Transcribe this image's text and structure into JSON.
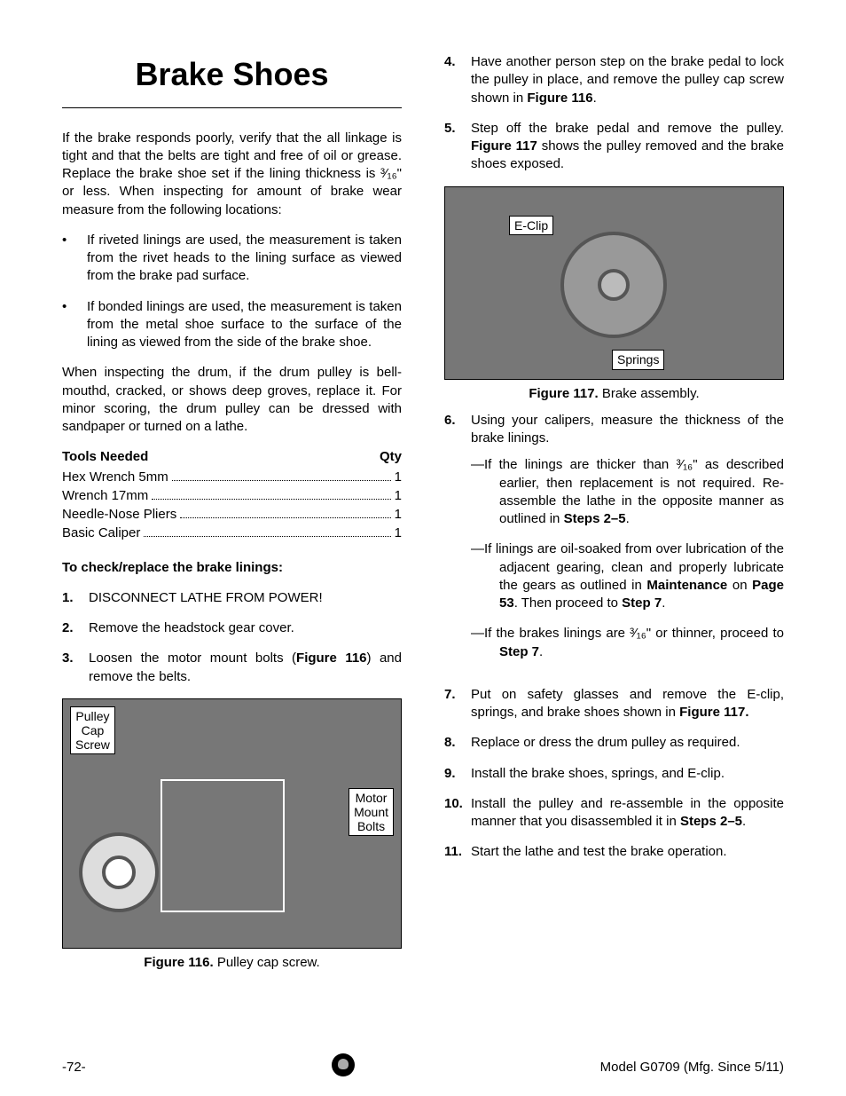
{
  "page": {
    "number": "-72-",
    "model": "Model G0709 (Mfg. Since 5/11)"
  },
  "title": "Brake Shoes",
  "intro": "If the brake responds poorly, verify that the all linkage is tight and that the belts are tight and free of oil or grease. Replace the brake shoe set if the lining thickness is ³⁄₁₆\" or less. When inspecting for amount of brake wear measure from the following locations:",
  "bullets": [
    "If riveted linings are used, the measurement is taken from the rivet heads to the lining surface as viewed from the brake pad surface.",
    "If bonded linings are used, the measurement is taken from the metal shoe surface to the surface of the lining as viewed from the side of the brake shoe."
  ],
  "drum_note": "When inspecting the drum, if the drum pulley is bell-mouthd, cracked, or shows deep groves, replace it. For minor scoring, the drum pulley can be dressed with sandpaper or turned on a lathe.",
  "tools": {
    "header_label": "Tools Needed",
    "qty_label": "Qty",
    "items": [
      {
        "name": "Hex Wrench 5mm",
        "qty": "1"
      },
      {
        "name": "Wrench 17mm",
        "qty": "1"
      },
      {
        "name": "Needle-Nose Pliers",
        "qty": "1"
      },
      {
        "name": "Basic Caliper",
        "qty": "1"
      }
    ]
  },
  "procedure_heading": "To check/replace the brake linings:",
  "steps_left": [
    {
      "n": "1.",
      "text": "DISCONNECT LATHE FROM POWER!"
    },
    {
      "n": "2.",
      "text": "Remove the headstock gear cover."
    },
    {
      "n": "3.",
      "text": "Loosen the motor mount bolts (<b>Figure 116</b>) and remove the belts."
    }
  ],
  "figure116": {
    "caption_bold": "Figure 116.",
    "caption_rest": " Pulley cap screw.",
    "label_a": "Pulley\nCap\nScrew",
    "label_b": "Motor\nMount\nBolts"
  },
  "steps_right_a": [
    {
      "n": "4.",
      "text": "Have another person step on the brake pedal to lock the pulley in place, and remove the pulley cap screw shown in <b>Figure 116</b>."
    },
    {
      "n": "5.",
      "text": "Step off the brake pedal and remove the pulley. <b>Figure 117</b> shows the pulley removed and the brake shoes exposed."
    }
  ],
  "figure117": {
    "caption_bold": "Figure 117.",
    "caption_rest": " Brake assembly.",
    "label_a": "E-Clip",
    "label_b": "Springs"
  },
  "step6": {
    "n": "6.",
    "text": "Using your calipers, measure the thickness of the brake linings.",
    "dashes": [
      "—If the linings are thicker than ³⁄₁₆\" as described earlier, then replacement is not required. Re-assemble the lathe in the opposite manner as outlined in <b>Steps 2–5</b>.",
      "—If linings are oil-soaked from over lubrication of the adjacent gearing, clean and properly lubricate the gears as outlined in <b>Maintenance</b> on <b>Page 53</b>. Then proceed to <b>Step 7</b>.",
      "—If the brakes linings are ³⁄₁₆\" or thinner, proceed to <b>Step 7</b>."
    ]
  },
  "steps_right_b": [
    {
      "n": "7.",
      "text": "Put on safety glasses and remove the E-clip, springs, and brake shoes shown in <b>Figure 117.</b>"
    },
    {
      "n": "8.",
      "text": "Replace or dress the drum pulley as required."
    },
    {
      "n": "9.",
      "text": "Install the brake shoes, springs, and E-clip."
    },
    {
      "n": "10.",
      "text": "Install the pulley and re-assemble in the opposite manner that you disassembled it in <b>Steps 2–5</b>."
    },
    {
      "n": "11.",
      "text": "Start the lathe and test the brake operation."
    }
  ]
}
